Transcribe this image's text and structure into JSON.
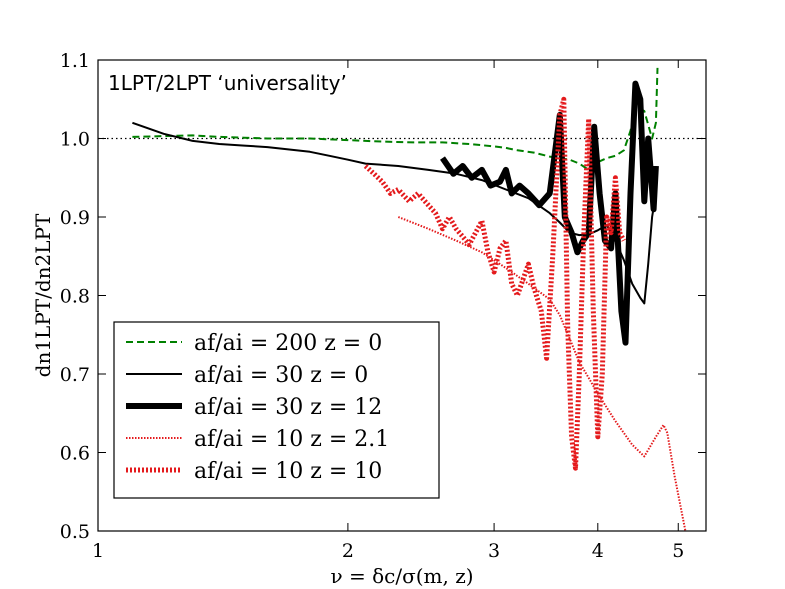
{
  "chart_data": {
    "type": "line",
    "title": "1LPT/2LPT ‘universality’",
    "xlabel": "ν = δc/σ(m, z)",
    "ylabel": "dn1LPT/dn2LPT",
    "xscale": "log",
    "xlim": [
      1,
      5.4
    ],
    "ylim": [
      0.5,
      1.1
    ],
    "x_ticks": [
      1,
      2,
      3,
      4,
      5
    ],
    "x_tick_labels": [
      "1",
      "2",
      "3",
      "4",
      "5"
    ],
    "y_ticks": [
      0.5,
      0.6,
      0.7,
      0.8,
      0.9,
      1.0,
      1.1
    ],
    "y_tick_labels": [
      "0.5",
      "0.6",
      "0.7",
      "0.8",
      "0.9",
      "1.0",
      "1.1"
    ],
    "reference_line": {
      "y": 1.0,
      "style": "dotted",
      "color": "#000000"
    },
    "legend_position": "lower-left",
    "series": [
      {
        "name": "af/ai = 200  z = 0",
        "color": "#008000",
        "style": "dashed",
        "width": 2,
        "points": [
          [
            1.1,
            1.002
          ],
          [
            1.2,
            1.003
          ],
          [
            1.3,
            1.004
          ],
          [
            1.4,
            1.002
          ],
          [
            1.5,
            1.001
          ],
          [
            1.6,
            1.0
          ],
          [
            1.8,
            1.0
          ],
          [
            2.0,
            0.998
          ],
          [
            2.2,
            0.996
          ],
          [
            2.4,
            0.995
          ],
          [
            2.6,
            0.995
          ],
          [
            2.8,
            0.993
          ],
          [
            3.0,
            0.99
          ],
          [
            3.1,
            0.988
          ],
          [
            3.2,
            0.985
          ],
          [
            3.35,
            0.982
          ],
          [
            3.5,
            0.977
          ],
          [
            3.6,
            0.975
          ],
          [
            3.7,
            0.973
          ],
          [
            3.8,
            0.968
          ],
          [
            3.9,
            0.96
          ],
          [
            3.95,
            0.965
          ],
          [
            4.0,
            0.97
          ],
          [
            4.1,
            0.975
          ],
          [
            4.2,
            0.978
          ],
          [
            4.3,
            0.985
          ],
          [
            4.38,
            1.01
          ],
          [
            4.45,
            1.04
          ],
          [
            4.55,
            1.035
          ],
          [
            4.65,
            1.0
          ],
          [
            4.7,
            1.02
          ],
          [
            4.72,
            1.09
          ]
        ]
      },
      {
        "name": "af/ai = 30  z = 0",
        "color": "#000000",
        "style": "solid",
        "width": 2,
        "points": [
          [
            1.1,
            1.02
          ],
          [
            1.2,
            1.006
          ],
          [
            1.3,
            0.997
          ],
          [
            1.4,
            0.993
          ],
          [
            1.5,
            0.991
          ],
          [
            1.6,
            0.989
          ],
          [
            1.7,
            0.986
          ],
          [
            1.8,
            0.983
          ],
          [
            1.9,
            0.978
          ],
          [
            2.0,
            0.973
          ],
          [
            2.1,
            0.968
          ],
          [
            2.3,
            0.965
          ],
          [
            2.5,
            0.96
          ],
          [
            2.7,
            0.955
          ],
          [
            2.9,
            0.947
          ],
          [
            3.1,
            0.935
          ],
          [
            3.3,
            0.924
          ],
          [
            3.5,
            0.905
          ],
          [
            3.6,
            0.893
          ],
          [
            3.7,
            0.88
          ],
          [
            3.8,
            0.877
          ],
          [
            3.9,
            0.878
          ],
          [
            4.0,
            0.883
          ],
          [
            4.1,
            0.89
          ],
          [
            4.2,
            0.87
          ],
          [
            4.3,
            0.845
          ],
          [
            4.4,
            0.815
          ],
          [
            4.5,
            0.797
          ],
          [
            4.55,
            0.79
          ],
          [
            4.6,
            0.84
          ],
          [
            4.65,
            0.9
          ],
          [
            4.7,
            0.93
          ]
        ]
      },
      {
        "name": "af/ai = 30  z = 12",
        "color": "#000000",
        "style": "solid",
        "width": 6,
        "points": [
          [
            2.6,
            0.975
          ],
          [
            2.68,
            0.955
          ],
          [
            2.75,
            0.965
          ],
          [
            2.82,
            0.95
          ],
          [
            2.9,
            0.96
          ],
          [
            2.97,
            0.94
          ],
          [
            3.05,
            0.945
          ],
          [
            3.1,
            0.96
          ],
          [
            3.15,
            0.93
          ],
          [
            3.22,
            0.94
          ],
          [
            3.3,
            0.93
          ],
          [
            3.4,
            0.915
          ],
          [
            3.5,
            0.93
          ],
          [
            3.6,
            1.03
          ],
          [
            3.65,
            0.9
          ],
          [
            3.72,
            0.88
          ],
          [
            3.78,
            0.855
          ],
          [
            3.84,
            0.87
          ],
          [
            3.9,
            0.88
          ],
          [
            3.96,
            1.015
          ],
          [
            4.02,
            0.93
          ],
          [
            4.08,
            0.87
          ],
          [
            4.15,
            0.86
          ],
          [
            4.2,
            0.93
          ],
          [
            4.27,
            0.78
          ],
          [
            4.32,
            0.74
          ],
          [
            4.38,
            0.93
          ],
          [
            4.44,
            1.07
          ],
          [
            4.5,
            1.05
          ],
          [
            4.55,
            0.92
          ],
          [
            4.6,
            1.0
          ],
          [
            4.67,
            0.91
          ],
          [
            4.7,
            0.965
          ]
        ]
      },
      {
        "name": "af/ai = 10  z = 2.1",
        "color": "#e41a1c",
        "style": "dotted",
        "width": 2,
        "points": [
          [
            2.3,
            0.9
          ],
          [
            2.5,
            0.885
          ],
          [
            2.7,
            0.87
          ],
          [
            2.9,
            0.855
          ],
          [
            3.1,
            0.835
          ],
          [
            3.3,
            0.815
          ],
          [
            3.5,
            0.795
          ],
          [
            3.6,
            0.775
          ],
          [
            3.7,
            0.745
          ],
          [
            3.8,
            0.715
          ],
          [
            3.9,
            0.695
          ],
          [
            4.0,
            0.675
          ],
          [
            4.2,
            0.64
          ],
          [
            4.4,
            0.61
          ],
          [
            4.55,
            0.595
          ],
          [
            4.7,
            0.62
          ],
          [
            4.8,
            0.635
          ],
          [
            4.85,
            0.625
          ],
          [
            4.95,
            0.57
          ],
          [
            5.1,
            0.5
          ]
        ]
      },
      {
        "name": "af/ai = 10  z = 10",
        "color": "#e41a1c",
        "style": "thick-dotted",
        "width": 5,
        "points": [
          [
            2.1,
            0.965
          ],
          [
            2.15,
            0.955
          ],
          [
            2.2,
            0.945
          ],
          [
            2.25,
            0.93
          ],
          [
            2.3,
            0.935
          ],
          [
            2.37,
            0.92
          ],
          [
            2.43,
            0.93
          ],
          [
            2.5,
            0.915
          ],
          [
            2.55,
            0.905
          ],
          [
            2.6,
            0.885
          ],
          [
            2.65,
            0.9
          ],
          [
            2.7,
            0.885
          ],
          [
            2.75,
            0.875
          ],
          [
            2.8,
            0.865
          ],
          [
            2.85,
            0.88
          ],
          [
            2.9,
            0.895
          ],
          [
            2.95,
            0.855
          ],
          [
            3.0,
            0.83
          ],
          [
            3.05,
            0.86
          ],
          [
            3.1,
            0.87
          ],
          [
            3.15,
            0.815
          ],
          [
            3.2,
            0.8
          ],
          [
            3.25,
            0.82
          ],
          [
            3.3,
            0.84
          ],
          [
            3.35,
            0.81
          ],
          [
            3.42,
            0.78
          ],
          [
            3.47,
            0.72
          ],
          [
            3.53,
            0.85
          ],
          [
            3.6,
            1.03
          ],
          [
            3.64,
            1.05
          ],
          [
            3.68,
            0.76
          ],
          [
            3.72,
            0.62
          ],
          [
            3.76,
            0.58
          ],
          [
            3.8,
            0.7
          ],
          [
            3.85,
            0.885
          ],
          [
            3.9,
            1.025
          ],
          [
            3.95,
            0.78
          ],
          [
            4.0,
            0.62
          ],
          [
            4.05,
            0.7
          ],
          [
            4.1,
            0.9
          ],
          [
            4.15,
            0.88
          ],
          [
            4.2,
            0.95
          ],
          [
            4.25,
            0.88
          ],
          [
            4.3,
            0.87
          ]
        ]
      }
    ]
  }
}
